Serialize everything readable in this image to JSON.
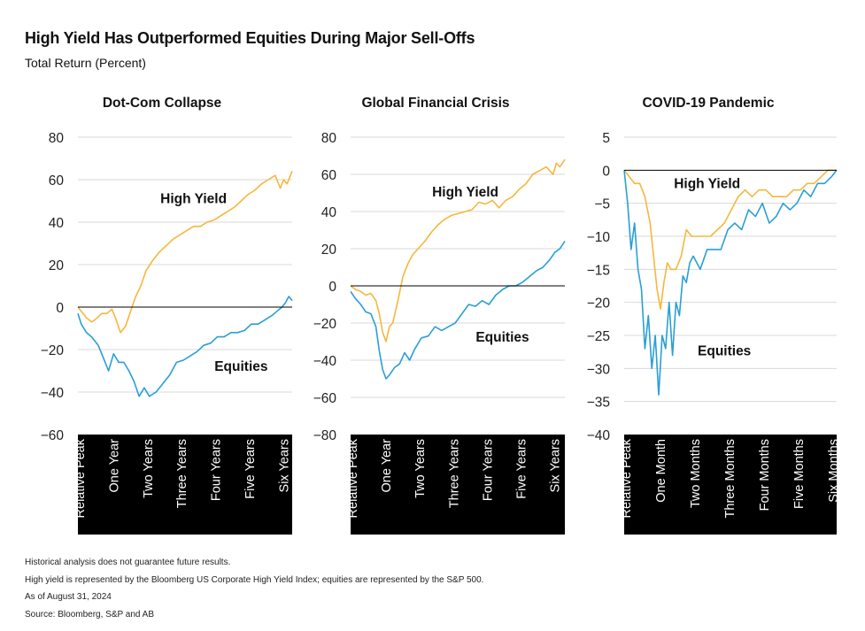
{
  "title": "High Yield Has Outperformed Equities During Major Sell-Offs",
  "subtitle": "Total Return (Percent)",
  "colors": {
    "high_yield": "#f6b73c",
    "equities": "#2a9fd6",
    "axis_band": "#000000",
    "grid": "#d9d9d9"
  },
  "footnotes": [
    "Historical analysis does not guarantee future results.",
    "High yield is represented by the Bloomberg US Corporate High Yield Index; equities are represented by the S&P 500.",
    "As of August 31, 2024",
    "Source: Bloomberg, S&P and AB"
  ],
  "chart_data": [
    {
      "type": "line",
      "title": "Dot-Com Collapse",
      "ylim": [
        -60,
        80
      ],
      "yticks": [
        80,
        60,
        40,
        20,
        0,
        -20,
        -40,
        -60
      ],
      "ytick_labels": [
        "80",
        "60",
        "40",
        "20",
        "0",
        "−20",
        "−40",
        "−60"
      ],
      "x_categories": [
        "Relative Peak",
        "One Year",
        "Two Years",
        "Three Years",
        "Four Years",
        "Five Years",
        "Six Years"
      ],
      "x_range": [
        0,
        6.3
      ],
      "annotations": [
        {
          "text": "High Yield",
          "series": "high_yield",
          "x": 3.4,
          "y": 49
        },
        {
          "text": "Equities",
          "series": "equities",
          "x": 4.8,
          "y": -30
        }
      ],
      "series": [
        {
          "key": "high_yield",
          "x": [
            0,
            0.1,
            0.25,
            0.4,
            0.5,
            0.7,
            0.85,
            1.0,
            1.1,
            1.25,
            1.4,
            1.55,
            1.7,
            1.85,
            2.0,
            2.2,
            2.4,
            2.6,
            2.8,
            3.0,
            3.2,
            3.4,
            3.6,
            3.8,
            4.0,
            4.2,
            4.4,
            4.6,
            4.8,
            5.0,
            5.2,
            5.4,
            5.6,
            5.8,
            5.95,
            6.05,
            6.15,
            6.25,
            6.3
          ],
          "y": [
            0,
            -2,
            -5,
            -7,
            -6,
            -3,
            -3,
            -1,
            -5,
            -12,
            -9,
            -2,
            5,
            10,
            17,
            22,
            26,
            29,
            32,
            34,
            36,
            38,
            38,
            40,
            41,
            43,
            45,
            47,
            50,
            53,
            55,
            58,
            60,
            62,
            56,
            60,
            58,
            62,
            64
          ]
        },
        {
          "key": "equities",
          "x": [
            0,
            0.1,
            0.25,
            0.4,
            0.6,
            0.75,
            0.9,
            1.05,
            1.2,
            1.35,
            1.5,
            1.65,
            1.8,
            1.95,
            2.1,
            2.3,
            2.5,
            2.7,
            2.9,
            3.1,
            3.3,
            3.5,
            3.7,
            3.9,
            4.1,
            4.3,
            4.5,
            4.7,
            4.9,
            5.1,
            5.3,
            5.5,
            5.7,
            5.85,
            6.0,
            6.1,
            6.2,
            6.3
          ],
          "y": [
            -3,
            -8,
            -12,
            -14,
            -18,
            -24,
            -30,
            -22,
            -26,
            -26,
            -30,
            -35,
            -42,
            -38,
            -42,
            -40,
            -36,
            -32,
            -26,
            -25,
            -23,
            -21,
            -18,
            -17,
            -14,
            -14,
            -12,
            -12,
            -11,
            -8,
            -8,
            -6,
            -4,
            -2,
            0,
            2,
            5,
            3
          ]
        }
      ]
    },
    {
      "type": "line",
      "title": "Global Financial Crisis",
      "ylim": [
        -80,
        80
      ],
      "yticks": [
        80,
        60,
        40,
        20,
        0,
        -20,
        -40,
        -60,
        -80
      ],
      "ytick_labels": [
        "80",
        "60",
        "40",
        "20",
        "0",
        "−20",
        "−40",
        "−60",
        "−80"
      ],
      "x_categories": [
        "Relative Peak",
        "One Year",
        "Two Years",
        "Three Years",
        "Four Years",
        "Five Years",
        "Six Years"
      ],
      "x_range": [
        0,
        6.35
      ],
      "annotations": [
        {
          "text": "High Yield",
          "series": "high_yield",
          "x": 3.4,
          "y": 48
        },
        {
          "text": "Equities",
          "series": "equities",
          "x": 4.5,
          "y": -30
        }
      ],
      "series": [
        {
          "key": "high_yield",
          "x": [
            0,
            0.15,
            0.3,
            0.45,
            0.6,
            0.75,
            0.85,
            0.95,
            1.05,
            1.15,
            1.25,
            1.4,
            1.55,
            1.7,
            1.85,
            2.0,
            2.2,
            2.4,
            2.6,
            2.8,
            3.0,
            3.2,
            3.4,
            3.6,
            3.8,
            4.0,
            4.2,
            4.4,
            4.6,
            4.8,
            5.0,
            5.2,
            5.4,
            5.6,
            5.8,
            6.0,
            6.1,
            6.2,
            6.35
          ],
          "y": [
            0,
            -2,
            -3,
            -5,
            -4,
            -8,
            -15,
            -25,
            -30,
            -22,
            -20,
            -8,
            5,
            12,
            17,
            20,
            24,
            29,
            33,
            36,
            38,
            39,
            40,
            41,
            45,
            44,
            46,
            42,
            46,
            48,
            52,
            55,
            60,
            62,
            64,
            60,
            66,
            64,
            68
          ]
        },
        {
          "key": "equities",
          "x": [
            0,
            0.15,
            0.3,
            0.45,
            0.6,
            0.75,
            0.85,
            0.95,
            1.05,
            1.15,
            1.3,
            1.45,
            1.6,
            1.75,
            1.9,
            2.1,
            2.3,
            2.5,
            2.7,
            2.9,
            3.1,
            3.3,
            3.5,
            3.7,
            3.9,
            4.1,
            4.3,
            4.5,
            4.7,
            4.9,
            5.1,
            5.3,
            5.5,
            5.7,
            5.9,
            6.05,
            6.2,
            6.35
          ],
          "y": [
            -3,
            -7,
            -10,
            -14,
            -15,
            -22,
            -35,
            -45,
            -50,
            -48,
            -44,
            -42,
            -36,
            -40,
            -34,
            -28,
            -27,
            -22,
            -24,
            -22,
            -20,
            -15,
            -10,
            -11,
            -8,
            -10,
            -5,
            -2,
            0,
            0,
            2,
            5,
            8,
            10,
            14,
            18,
            20,
            24
          ]
        }
      ]
    },
    {
      "type": "line",
      "title": "COVID-19 Pandemic",
      "ylim": [
        -40,
        5
      ],
      "yticks": [
        5,
        0,
        -5,
        -10,
        -15,
        -20,
        -25,
        -30,
        -35,
        -40
      ],
      "ytick_labels": [
        "5",
        "0",
        "−5",
        "−10",
        "−15",
        "−20",
        "−25",
        "−30",
        "−35",
        "−40"
      ],
      "x_categories": [
        "Relative Peak",
        "One Month",
        "Two Months",
        "Three Months",
        "Four Months",
        "Five Months",
        "Six Months"
      ],
      "x_range": [
        0,
        6.15
      ],
      "annotations": [
        {
          "text": "High Yield",
          "series": "high_yield",
          "x": 2.4,
          "y": -2.7
        },
        {
          "text": "Equities",
          "series": "equities",
          "x": 2.9,
          "y": -28
        }
      ],
      "series": [
        {
          "key": "high_yield",
          "x": [
            0,
            0.15,
            0.3,
            0.45,
            0.6,
            0.75,
            0.85,
            0.95,
            1.05,
            1.15,
            1.25,
            1.35,
            1.5,
            1.65,
            1.8,
            1.95,
            2.1,
            2.3,
            2.5,
            2.7,
            2.9,
            3.1,
            3.3,
            3.5,
            3.7,
            3.9,
            4.1,
            4.3,
            4.5,
            4.7,
            4.9,
            5.1,
            5.3,
            5.5,
            5.7,
            5.9,
            6.15
          ],
          "y": [
            0,
            -1,
            -2,
            -2,
            -4,
            -8,
            -13,
            -18,
            -21,
            -17,
            -14,
            -15,
            -15,
            -13,
            -9,
            -10,
            -10,
            -10,
            -10,
            -9,
            -8,
            -6,
            -4,
            -3,
            -4,
            -3,
            -3,
            -4,
            -4,
            -4,
            -3,
            -3,
            -2,
            -2,
            -1,
            0,
            0
          ]
        },
        {
          "key": "equities",
          "x": [
            0,
            0.1,
            0.2,
            0.3,
            0.4,
            0.5,
            0.6,
            0.7,
            0.8,
            0.9,
            1.0,
            1.1,
            1.2,
            1.3,
            1.4,
            1.5,
            1.6,
            1.7,
            1.8,
            1.9,
            2.0,
            2.2,
            2.4,
            2.6,
            2.8,
            3.0,
            3.2,
            3.4,
            3.6,
            3.8,
            4.0,
            4.2,
            4.4,
            4.6,
            4.8,
            5.0,
            5.2,
            5.4,
            5.6,
            5.8,
            6.0,
            6.15
          ],
          "y": [
            0,
            -5,
            -12,
            -8,
            -15,
            -18,
            -27,
            -22,
            -30,
            -25,
            -34,
            -25,
            -27,
            -20,
            -28,
            -20,
            -22,
            -16,
            -17,
            -14,
            -13,
            -15,
            -12,
            -12,
            -12,
            -9,
            -8,
            -9,
            -6,
            -7,
            -5,
            -8,
            -7,
            -5,
            -6,
            -5,
            -3,
            -4,
            -2,
            -2,
            -1,
            0
          ]
        }
      ]
    }
  ]
}
